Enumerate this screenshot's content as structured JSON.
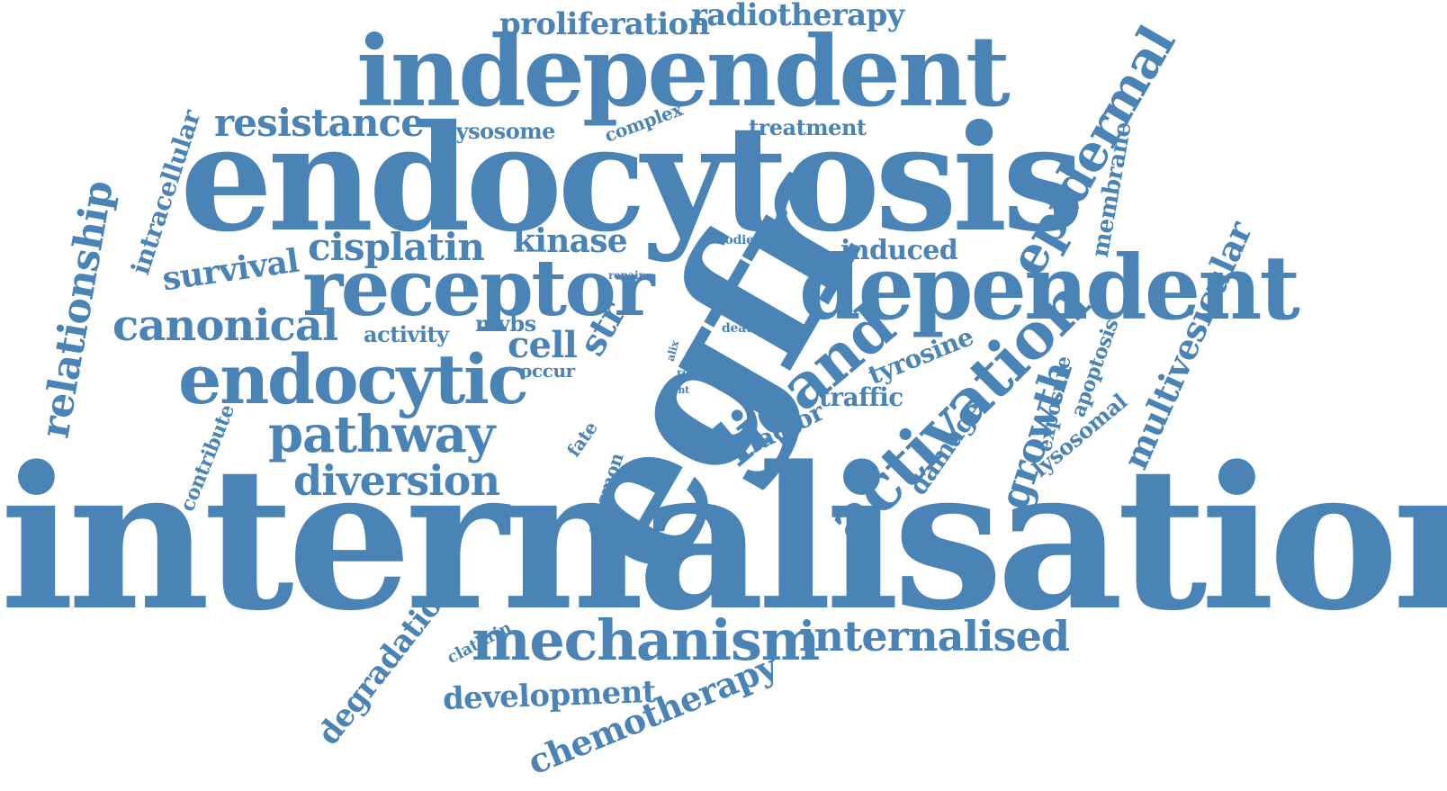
{
  "color": "#4a83b6",
  "words": [
    {
      "id": "internalisation",
      "text": "internalisation"
    },
    {
      "id": "endocytosis",
      "text": "endocytosis"
    },
    {
      "id": "egfr",
      "text": "egfr"
    },
    {
      "id": "independent",
      "text": "independent"
    },
    {
      "id": "dependent",
      "text": "dependent"
    },
    {
      "id": "receptor",
      "text": "receptor"
    },
    {
      "id": "endocytic",
      "text": "endocytic"
    },
    {
      "id": "mechanism",
      "text": "mechanism"
    },
    {
      "id": "activation",
      "text": "activation"
    },
    {
      "id": "pathway",
      "text": "pathway"
    },
    {
      "id": "ligand",
      "text": "ligand"
    },
    {
      "id": "canonical",
      "text": "canonical"
    },
    {
      "id": "diversion",
      "text": "diversion"
    },
    {
      "id": "epidermal",
      "text": "epidermal"
    },
    {
      "id": "internalised",
      "text": "internalised"
    },
    {
      "id": "resistance",
      "text": "resistance"
    },
    {
      "id": "cisplatin",
      "text": "cisplatin"
    },
    {
      "id": "relationship",
      "text": "relationship"
    },
    {
      "id": "multivesicular",
      "text": "multivesicular"
    },
    {
      "id": "chemotherapy",
      "text": "chemotherapy"
    },
    {
      "id": "growth",
      "text": "growth"
    },
    {
      "id": "development",
      "text": "development"
    },
    {
      "id": "degradation",
      "text": "degradation"
    },
    {
      "id": "radiotherapy",
      "text": "radiotherapy"
    },
    {
      "id": "proliferation",
      "text": "proliferation"
    },
    {
      "id": "survival",
      "text": "survival"
    },
    {
      "id": "kinase",
      "text": "kinase"
    },
    {
      "id": "cell",
      "text": "cell"
    },
    {
      "id": "str",
      "text": "str"
    },
    {
      "id": "induced",
      "text": "induced"
    },
    {
      "id": "tyrosine",
      "text": "tyrosine"
    },
    {
      "id": "traffic",
      "text": "traffic"
    },
    {
      "id": "factor",
      "text": "factor"
    },
    {
      "id": "damage",
      "text": "damage"
    },
    {
      "id": "intracellular",
      "text": "intracellular"
    },
    {
      "id": "membrane",
      "text": "membrane"
    },
    {
      "id": "lysosomal",
      "text": "lysosomal"
    },
    {
      "id": "exposure",
      "text": "exposure"
    },
    {
      "id": "apoptosis",
      "text": "apoptosis"
    },
    {
      "id": "lysosome",
      "text": "lysosome"
    },
    {
      "id": "treatment",
      "text": "treatment"
    },
    {
      "id": "complex",
      "text": "complex"
    },
    {
      "id": "activity",
      "text": "activity"
    },
    {
      "id": "mvbs",
      "text": "mvbs"
    },
    {
      "id": "occur",
      "text": "occur"
    },
    {
      "id": "contribute",
      "text": "contribute"
    },
    {
      "id": "plasmon",
      "text": "plasmon"
    },
    {
      "id": "fate",
      "text": "fate"
    },
    {
      "id": "clathrin",
      "text": "clathrin"
    },
    {
      "id": "bodies",
      "text": "bodies"
    },
    {
      "id": "repair",
      "text": "repair"
    },
    {
      "id": "death",
      "text": "death"
    },
    {
      "id": "alix",
      "text": "alix"
    },
    {
      "id": "role",
      "text": "role"
    },
    {
      "id": "light",
      "text": "light"
    }
  ]
}
